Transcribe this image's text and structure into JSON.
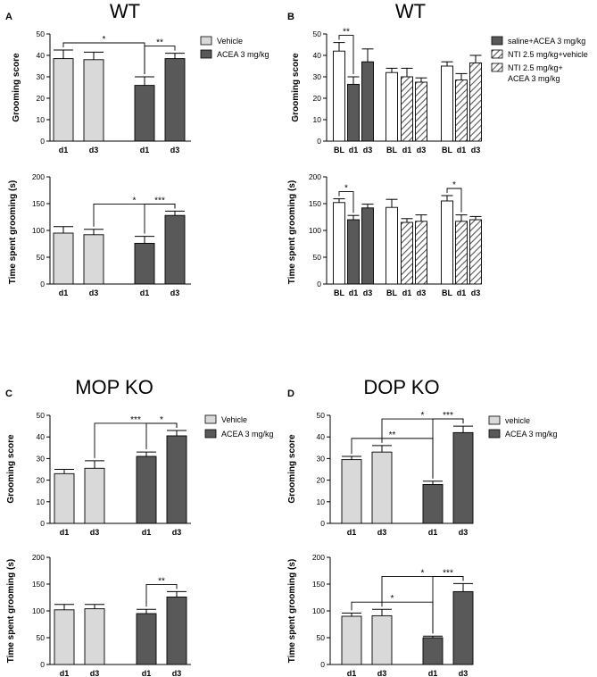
{
  "titles": {
    "wt_a": "WT",
    "wt_b": "WT",
    "mop": "MOP KO",
    "dop": "DOP KO"
  },
  "panel_letters": {
    "a": "A",
    "b": "B",
    "c": "C",
    "d": "D"
  },
  "y_labels": {
    "score": "Grooming score",
    "time": "Time spent grooming (s)"
  },
  "legend_ab": {
    "vehicle": "Vehicle",
    "acea": "ACEA 3 mg/kg"
  },
  "legend_b": {
    "saline_acea": "saline+ACEA 3 mg/kg",
    "nti_vehicle": "NTI 2.5 mg/kg+vehicle",
    "nti_acea_line1": "NTI 2.5 mg/kg+",
    "nti_acea_line2": "ACEA 3 mg/kg"
  },
  "legend_c": {
    "vehicle": "Vehicle",
    "acea": "ACEA 3 mg/kg"
  },
  "legend_d": {
    "vehicle": "vehicle",
    "acea": "ACEA 3 mg/kg"
  },
  "colors": {
    "light": "#d9d9d9",
    "dark": "#595959",
    "white": "#ffffff",
    "stroke": "#000000"
  },
  "chart_data": [
    {
      "id": "A-top",
      "type": "bar",
      "panel": "A",
      "title": "WT",
      "ylabel": "Grooming score",
      "ylim": [
        0,
        50
      ],
      "yticks": [
        0,
        10,
        20,
        30,
        40,
        50
      ],
      "categories": [
        "d1",
        "d3",
        "d1",
        "d3"
      ],
      "groups": [
        "Vehicle",
        "Vehicle",
        "ACEA 3 mg/kg",
        "ACEA 3 mg/kg"
      ],
      "values": [
        38.5,
        38,
        26,
        38.5
      ],
      "errors": [
        4,
        3.5,
        4,
        2.5
      ],
      "significance": [
        {
          "from": 0,
          "to": 2,
          "label": "*"
        },
        {
          "from": 2,
          "to": 3,
          "label": "**"
        }
      ]
    },
    {
      "id": "A-bottom",
      "type": "bar",
      "panel": "A",
      "ylabel": "Time spent grooming (s)",
      "ylim": [
        0,
        200
      ],
      "yticks": [
        0,
        50,
        100,
        150,
        200
      ],
      "categories": [
        "d1",
        "d3",
        "d1",
        "d3"
      ],
      "groups": [
        "Vehicle",
        "Vehicle",
        "ACEA 3 mg/kg",
        "ACEA 3 mg/kg"
      ],
      "values": [
        95,
        92,
        76,
        128
      ],
      "errors": [
        12,
        10,
        13,
        8
      ],
      "significance": [
        {
          "from": 1,
          "to": 3,
          "label": "*"
        },
        {
          "from": 2,
          "to": 3,
          "label": "***"
        }
      ]
    },
    {
      "id": "B-top",
      "type": "bar",
      "panel": "B",
      "title": "WT",
      "ylabel": "Grooming score",
      "ylim": [
        0,
        50
      ],
      "yticks": [
        0,
        10,
        20,
        30,
        40,
        50
      ],
      "categories": [
        "BL",
        "d1",
        "d3",
        "BL",
        "d1",
        "d3",
        "BL",
        "d1",
        "d3"
      ],
      "groups": [
        "saline+ACEA 3 mg/kg",
        "saline+ACEA 3 mg/kg",
        "saline+ACEA 3 mg/kg",
        "NTI 2.5 mg/kg+vehicle",
        "NTI 2.5 mg/kg+vehicle",
        "NTI 2.5 mg/kg+vehicle",
        "NTI 2.5 mg/kg+ACEA 3 mg/kg",
        "NTI 2.5 mg/kg+ACEA 3 mg/kg",
        "NTI 2.5 mg/kg+ACEA 3 mg/kg"
      ],
      "values": [
        42,
        26.5,
        37,
        32,
        30,
        27.5,
        35,
        28.5,
        36.5
      ],
      "errors": [
        4,
        3.5,
        6,
        2,
        4,
        2,
        2,
        3,
        3.5
      ],
      "significance": [
        {
          "from": 0,
          "to": 1,
          "label": "**"
        }
      ]
    },
    {
      "id": "B-bottom",
      "type": "bar",
      "panel": "B",
      "ylabel": "Time spent grooming (s)",
      "ylim": [
        0,
        200
      ],
      "yticks": [
        0,
        50,
        100,
        150,
        200
      ],
      "categories": [
        "BL",
        "d1",
        "d3",
        "BL",
        "d1",
        "d3",
        "BL",
        "d1",
        "d3"
      ],
      "groups": [
        "saline+ACEA 3 mg/kg",
        "saline+ACEA 3 mg/kg",
        "saline+ACEA 3 mg/kg",
        "NTI 2.5 mg/kg+vehicle",
        "NTI 2.5 mg/kg+vehicle",
        "NTI 2.5 mg/kg+vehicle",
        "NTI 2.5 mg/kg+ACEA 3 mg/kg",
        "NTI 2.5 mg/kg+ACEA 3 mg/kg",
        "NTI 2.5 mg/kg+ACEA 3 mg/kg"
      ],
      "values": [
        152,
        120,
        142,
        143,
        115,
        117,
        155,
        117,
        120
      ],
      "errors": [
        7,
        8,
        7,
        15,
        7,
        12,
        10,
        12,
        6
      ],
      "significance": [
        {
          "from": 0,
          "to": 1,
          "label": "*"
        },
        {
          "from": 6,
          "to": 7,
          "label": "*"
        }
      ]
    },
    {
      "id": "C-top",
      "type": "bar",
      "panel": "C",
      "title": "MOP KO",
      "ylabel": "Grooming score",
      "ylim": [
        0,
        50
      ],
      "yticks": [
        0,
        10,
        20,
        30,
        40,
        50
      ],
      "categories": [
        "d1",
        "d3",
        "d1",
        "d3"
      ],
      "groups": [
        "Vehicle",
        "Vehicle",
        "ACEA 3 mg/kg",
        "ACEA 3 mg/kg"
      ],
      "values": [
        23,
        25.5,
        31,
        40.5
      ],
      "errors": [
        2,
        3.5,
        2,
        2.5
      ],
      "significance": [
        {
          "from": 1,
          "to": 3,
          "label": "***"
        },
        {
          "from": 2,
          "to": 3,
          "label": "*"
        }
      ]
    },
    {
      "id": "C-bottom",
      "type": "bar",
      "panel": "C",
      "ylabel": "Time spent grooming (s)",
      "ylim": [
        0,
        200
      ],
      "yticks": [
        0,
        50,
        100,
        150,
        200
      ],
      "categories": [
        "d1",
        "d3",
        "d1",
        "d3"
      ],
      "groups": [
        "Vehicle",
        "Vehicle",
        "ACEA 3 mg/kg",
        "ACEA 3 mg/kg"
      ],
      "values": [
        102,
        104,
        95,
        126
      ],
      "errors": [
        10,
        8,
        8,
        10
      ],
      "significance": [
        {
          "from": 2,
          "to": 3,
          "label": "**"
        }
      ]
    },
    {
      "id": "D-top",
      "type": "bar",
      "panel": "D",
      "title": "DOP KO",
      "ylabel": "Grooming score",
      "ylim": [
        0,
        50
      ],
      "yticks": [
        0,
        10,
        20,
        30,
        40,
        50
      ],
      "categories": [
        "d1",
        "d3",
        "d1",
        "d3"
      ],
      "groups": [
        "vehicle",
        "vehicle",
        "ACEA 3 mg/kg",
        "ACEA 3 mg/kg"
      ],
      "values": [
        29.5,
        33,
        18,
        42
      ],
      "errors": [
        1.5,
        3,
        1.5,
        3
      ],
      "significance": [
        {
          "from": 0,
          "to": 2,
          "label": "**"
        },
        {
          "from": 1,
          "to": 3,
          "label": "*"
        },
        {
          "from": 2,
          "to": 3,
          "label": "***"
        }
      ]
    },
    {
      "id": "D-bottom",
      "type": "bar",
      "panel": "D",
      "ylabel": "Time spent grooming (s)",
      "ylim": [
        0,
        200
      ],
      "yticks": [
        0,
        50,
        100,
        150,
        200
      ],
      "categories": [
        "d1",
        "d3",
        "d1",
        "d3"
      ],
      "groups": [
        "vehicle",
        "vehicle",
        "ACEA 3 mg/kg",
        "ACEA 3 mg/kg"
      ],
      "values": [
        90,
        91,
        50,
        136
      ],
      "errors": [
        6,
        12,
        3,
        15
      ],
      "significance": [
        {
          "from": 0,
          "to": 2,
          "label": "*"
        },
        {
          "from": 1,
          "to": 3,
          "label": "*"
        },
        {
          "from": 2,
          "to": 3,
          "label": "***"
        }
      ]
    }
  ]
}
